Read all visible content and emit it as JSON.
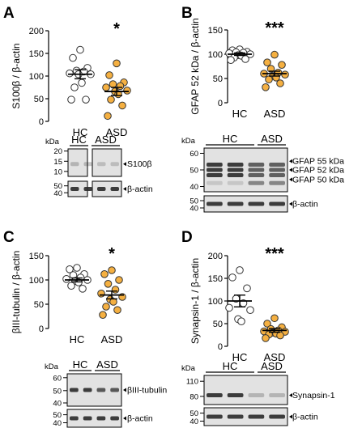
{
  "colors": {
    "hc_fill": "#ffffff",
    "asd_fill": "#f5b041",
    "marker_edge": "#333333",
    "blot_bg": "#e2e2e2",
    "band": "#2a2a2a"
  },
  "panels": [
    {
      "letter": "A",
      "chart_data": {
        "type": "scatter",
        "title": "",
        "ylabel": "S100β / β-actin",
        "ylim": [
          0,
          200
        ],
        "yticks": [
          0,
          50,
          100,
          150,
          200
        ],
        "categories": [
          "HC",
          "ASD"
        ],
        "significance": "*",
        "series": [
          {
            "name": "HC",
            "values": [
              158,
              140,
              118,
              112,
              110,
              106,
              104,
              104,
              85,
              75,
              48,
              48
            ],
            "mean": 104,
            "sem": 10
          },
          {
            "name": "ASD",
            "values": [
              128,
              102,
              86,
              82,
              78,
              75,
              68,
              66,
              60,
              48,
              35,
              12
            ],
            "mean": 66,
            "sem": 9
          }
        ]
      },
      "blot": {
        "kda_label": "kDa",
        "groups": [
          "HC",
          "ASD"
        ],
        "markers": [
          {
            "kda": "20",
            "row": 0,
            "frac": 0.08
          },
          {
            "kda": "15",
            "row": 0,
            "frac": 0.45
          },
          {
            "kda": "10",
            "row": 0,
            "frac": 0.82
          },
          {
            "kda": "50",
            "row": 1,
            "frac": 0.3
          },
          {
            "kda": "40",
            "row": 1,
            "frac": 0.75
          }
        ],
        "bands": [
          {
            "label": "S100β",
            "row": 0
          },
          {
            "label": "β-actin",
            "row": 1
          }
        ]
      }
    },
    {
      "letter": "B",
      "chart_data": {
        "type": "scatter",
        "title": "",
        "ylabel": "GFAP 52 kDa / β-actin",
        "ylim": [
          0,
          150
        ],
        "yticks": [
          0,
          50,
          100,
          150
        ],
        "categories": [
          "HC",
          "ASD"
        ],
        "significance": "***",
        "series": [
          {
            "name": "HC",
            "values": [
              110,
              108,
              105,
              104,
              103,
              102,
              100,
              98,
              97,
              93,
              90,
              88
            ],
            "mean": 100,
            "sem": 2.5
          },
          {
            "name": "ASD",
            "values": [
              99,
              83,
              78,
              70,
              62,
              60,
              58,
              55,
              52,
              48,
              40,
              32
            ],
            "mean": 60,
            "sem": 5
          }
        ]
      },
      "blot": {
        "kda_label": "kDa",
        "groups": [
          "HC",
          "ASD"
        ],
        "markers": [
          {
            "kda": "60",
            "row": 0,
            "frac": 0.12
          },
          {
            "kda": "50",
            "row": 0,
            "frac": 0.5
          },
          {
            "kda": "40",
            "row": 0,
            "frac": 0.88
          },
          {
            "kda": "50",
            "row": 1,
            "frac": 0.3
          },
          {
            "kda": "40",
            "row": 1,
            "frac": 0.75
          }
        ],
        "bands": [
          {
            "label": "GFAP 55 kDa",
            "row": 0
          },
          {
            "label": "GFAP 52 kDa",
            "row": 0
          },
          {
            "label": "GFAP 50 kDa",
            "row": 0
          },
          {
            "label": "β-actin",
            "row": 1
          }
        ]
      }
    },
    {
      "letter": "C",
      "chart_data": {
        "type": "scatter",
        "title": "",
        "ylabel": "βIII-tubulin / β-actin",
        "ylim": [
          0,
          150
        ],
        "yticks": [
          0,
          50,
          100,
          150
        ],
        "categories": [
          "HC",
          "ASD"
        ],
        "significance": "*",
        "series": [
          {
            "name": "HC",
            "values": [
              125,
              122,
              112,
              110,
              105,
              102,
              100,
              98,
              95,
              88,
              82
            ],
            "mean": 100,
            "sem": 4
          },
          {
            "name": "ASD",
            "values": [
              120,
              112,
              100,
              92,
              80,
              72,
              65,
              60,
              55,
              45,
              38,
              28
            ],
            "mean": 69,
            "sem": 8
          }
        ]
      },
      "blot": {
        "kda_label": "kDa",
        "groups": [
          "HC",
          "ASD"
        ],
        "markers": [
          {
            "kda": "60",
            "row": 0,
            "frac": 0.12
          },
          {
            "kda": "50",
            "row": 0,
            "frac": 0.52
          },
          {
            "kda": "40",
            "row": 0,
            "frac": 0.9
          },
          {
            "kda": "50",
            "row": 1,
            "frac": 0.3
          },
          {
            "kda": "40",
            "row": 1,
            "frac": 0.75
          }
        ],
        "bands": [
          {
            "label": "βIII-tubulin",
            "row": 0
          },
          {
            "label": "β-actin",
            "row": 1
          }
        ]
      }
    },
    {
      "letter": "D",
      "chart_data": {
        "type": "scatter",
        "title": "",
        "ylabel": "Synapsin-1 / β-actin",
        "ylim": [
          0,
          200
        ],
        "yticks": [
          0,
          50,
          100,
          150,
          200
        ],
        "categories": [
          "HC",
          "ASD"
        ],
        "significance": "***",
        "series": [
          {
            "name": "HC",
            "values": [
              168,
              152,
              128,
              105,
              95,
              85,
              80,
              60,
              55
            ],
            "mean": 100,
            "sem": 13
          },
          {
            "name": "ASD",
            "values": [
              62,
              50,
              42,
              38,
              35,
              33,
              32,
              30,
              28,
              26,
              24,
              18
            ],
            "mean": 35,
            "sem": 4
          }
        ]
      },
      "blot": {
        "kda_label": "kDa",
        "groups": [
          "HC",
          "ASD"
        ],
        "markers": [
          {
            "kda": "110",
            "row": 0,
            "frac": 0.2
          },
          {
            "kda": "80",
            "row": 0,
            "frac": 0.72
          },
          {
            "kda": "50",
            "row": 1,
            "frac": 0.3
          },
          {
            "kda": "40",
            "row": 1,
            "frac": 0.75
          }
        ],
        "bands": [
          {
            "label": "Synapsin-1",
            "row": 0
          },
          {
            "label": "β-actin",
            "row": 1
          }
        ]
      }
    }
  ]
}
